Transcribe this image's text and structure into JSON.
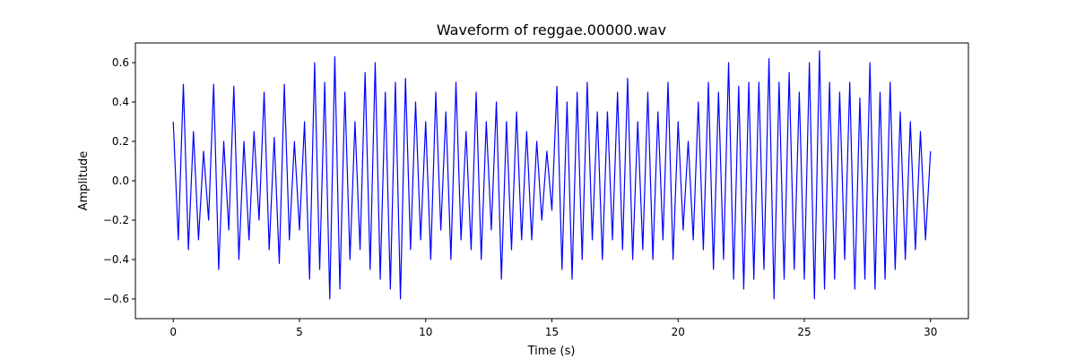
{
  "chart_data": {
    "type": "line",
    "title": "Waveform of reggae.00000.wav",
    "x_label": "Time (s)",
    "y_label": "Amplitude",
    "color": "#0000ff",
    "x": [
      0,
      0.2,
      0.4,
      0.6,
      0.8,
      1,
      1.2,
      1.4,
      1.6,
      1.8,
      2,
      2.2,
      2.4,
      2.6,
      2.8,
      3,
      3.2,
      3.4,
      3.6,
      3.8,
      4,
      4.2,
      4.4,
      4.6,
      4.8,
      5,
      5.2,
      5.4,
      5.6,
      5.8,
      6,
      6.2,
      6.4,
      6.6,
      6.8,
      7,
      7.2,
      7.4,
      7.6,
      7.8,
      8,
      8.2,
      8.4,
      8.6,
      8.8,
      9,
      9.2,
      9.4,
      9.6,
      9.8,
      10,
      10.2,
      10.4,
      10.6,
      10.8,
      11,
      11.2,
      11.4,
      11.6,
      11.8,
      12,
      12.2,
      12.4,
      12.6,
      12.8,
      13,
      13.2,
      13.4,
      13.6,
      13.8,
      14,
      14.2,
      14.4,
      14.6,
      14.8,
      15,
      15.2,
      15.4,
      15.6,
      15.8,
      16,
      16.2,
      16.4,
      16.6,
      16.8,
      17,
      17.2,
      17.4,
      17.6,
      17.8,
      18,
      18.2,
      18.4,
      18.6,
      18.8,
      19,
      19.2,
      19.4,
      19.6,
      19.8,
      20,
      20.2,
      20.4,
      20.6,
      20.8,
      21,
      21.2,
      21.4,
      21.6,
      21.8,
      22,
      22.2,
      22.4,
      22.6,
      22.8,
      23,
      23.2,
      23.4,
      23.6,
      23.8,
      24,
      24.2,
      24.4,
      24.6,
      24.8,
      25,
      25.2,
      25.4,
      25.6,
      25.8,
      26,
      26.2,
      26.4,
      26.6,
      26.8,
      27,
      27.2,
      27.4,
      27.6,
      27.8,
      28,
      28.2,
      28.4,
      28.6,
      28.8,
      29,
      29.2,
      29.4,
      29.6,
      29.8,
      30
    ],
    "values": [
      0.3,
      -0.3,
      0.49,
      -0.35,
      0.25,
      -0.3,
      0.15,
      -0.2,
      0.49,
      -0.45,
      0.2,
      -0.25,
      0.48,
      -0.4,
      0.2,
      -0.3,
      0.25,
      -0.2,
      0.45,
      -0.35,
      0.22,
      -0.42,
      0.49,
      -0.3,
      0.2,
      -0.25,
      0.3,
      -0.5,
      0.6,
      -0.45,
      0.5,
      -0.6,
      0.63,
      -0.55,
      0.45,
      -0.4,
      0.3,
      -0.35,
      0.55,
      -0.45,
      0.6,
      -0.5,
      0.45,
      -0.55,
      0.5,
      -0.6,
      0.52,
      -0.35,
      0.4,
      -0.3,
      0.3,
      -0.4,
      0.45,
      -0.25,
      0.35,
      -0.4,
      0.5,
      -0.3,
      0.25,
      -0.35,
      0.45,
      -0.4,
      0.3,
      -0.25,
      0.4,
      -0.5,
      0.3,
      -0.35,
      0.35,
      -0.3,
      0.25,
      -0.3,
      0.2,
      -0.2,
      0.15,
      -0.15,
      0.48,
      -0.45,
      0.4,
      -0.5,
      0.45,
      -0.4,
      0.5,
      -0.3,
      0.35,
      -0.4,
      0.35,
      -0.3,
      0.45,
      -0.35,
      0.52,
      -0.4,
      0.3,
      -0.35,
      0.45,
      -0.4,
      0.35,
      -0.3,
      0.5,
      -0.4,
      0.3,
      -0.25,
      0.2,
      -0.3,
      0.4,
      -0.35,
      0.5,
      -0.45,
      0.45,
      -0.4,
      0.6,
      -0.5,
      0.48,
      -0.55,
      0.5,
      -0.5,
      0.5,
      -0.45,
      0.62,
      -0.6,
      0.5,
      -0.5,
      0.55,
      -0.45,
      0.45,
      -0.5,
      0.6,
      -0.6,
      0.66,
      -0.55,
      0.5,
      -0.5,
      0.45,
      -0.4,
      0.5,
      -0.55,
      0.42,
      -0.5,
      0.6,
      -0.55,
      0.45,
      -0.5,
      0.5,
      -0.45,
      0.35,
      -0.4,
      0.3,
      -0.35,
      0.25,
      -0.3,
      0.15
    ],
    "xlim": [
      -1.5,
      31.5
    ],
    "ylim": [
      -0.7,
      0.7
    ],
    "xticks": [
      0,
      5,
      10,
      15,
      20,
      25,
      30
    ],
    "yticks": [
      {
        "value": -0.6,
        "label": "−0.6"
      },
      {
        "value": -0.4,
        "label": "−0.4"
      },
      {
        "value": -0.2,
        "label": "−0.2"
      },
      {
        "value": 0,
        "label": "0.0"
      },
      0.2,
      0.4,
      0.6
    ]
  }
}
